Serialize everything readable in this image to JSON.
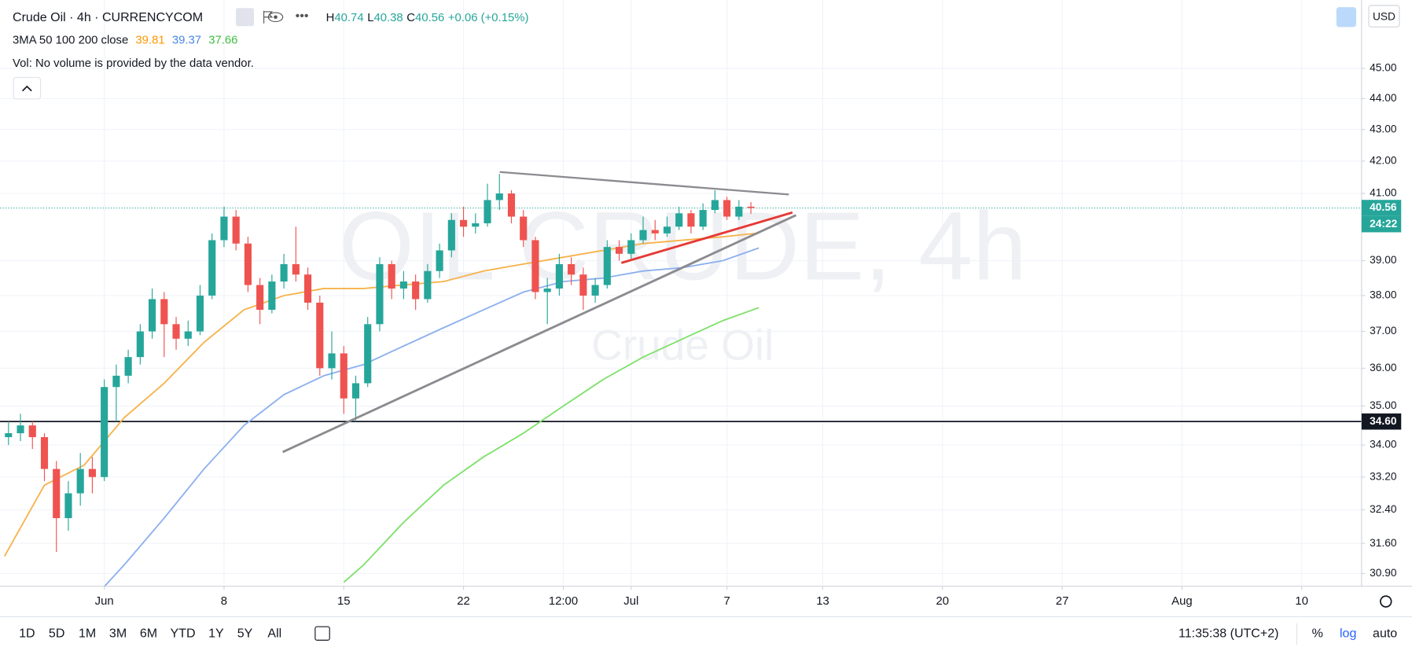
{
  "header": {
    "title": "Crude Oil · 4h · CURRENCYCOM",
    "ohlc": [
      "H",
      "40.74",
      "L",
      "40.38",
      "C",
      "40.56",
      "+0.06 (+0.15%)"
    ],
    "ma_label": "3MA 50 100 200 close",
    "volume_note": "Vol: No volume is provided by the data vendor.",
    "currency": "USD"
  },
  "watermark": {
    "symbol": "OIL CRUDE, 4h",
    "name": "Crude Oil"
  },
  "toolbar": {
    "ranges": [
      "1D",
      "5D",
      "1M",
      "3M",
      "6M",
      "YTD",
      "1Y",
      "5Y",
      "All"
    ],
    "clock": "11:35:38 (UTC+2)",
    "percent": "%",
    "log": "log",
    "auto": "auto"
  },
  "chart_data": {
    "type": "candlestick",
    "log_scale": true,
    "grid": true,
    "up_color": "#26a69a",
    "down_color": "#ef5350",
    "xlim": [
      0,
      340
    ],
    "ylim": [
      30.61,
      47.35
    ],
    "xticks": [
      {
        "value": 25,
        "label": "Jun"
      },
      {
        "value": 55,
        "label": "8"
      },
      {
        "value": 85,
        "label": "15"
      },
      {
        "value": 115,
        "label": "22"
      },
      {
        "value": 140,
        "label": "12:00"
      },
      {
        "value": 157,
        "label": "Jul"
      },
      {
        "value": 181,
        "label": "7"
      },
      {
        "value": 205,
        "label": "13"
      },
      {
        "value": 235,
        "label": "20"
      },
      {
        "value": 265,
        "label": "27"
      },
      {
        "value": 295,
        "label": "Aug"
      },
      {
        "value": 325,
        "label": "10"
      }
    ],
    "yticks": [
      {
        "value": 45,
        "label": "45.00"
      },
      {
        "value": 44,
        "label": "44.00"
      },
      {
        "value": 43,
        "label": "43.00"
      },
      {
        "value": 42,
        "label": "42.00"
      },
      {
        "value": 41,
        "label": "41.00"
      },
      {
        "value": 39,
        "label": "39.00"
      },
      {
        "value": 38,
        "label": "38.00"
      },
      {
        "value": 37,
        "label": "37.00"
      },
      {
        "value": 36,
        "label": "36.00"
      },
      {
        "value": 35,
        "label": "35.00"
      },
      {
        "value": 34,
        "label": "34.00"
      },
      {
        "value": 33.2,
        "label": "33.20"
      },
      {
        "value": 32.4,
        "label": "32.40"
      },
      {
        "value": 31.6,
        "label": "31.60"
      },
      {
        "value": 30.9,
        "label": "30.90"
      }
    ],
    "x": [
      1,
      4,
      7,
      10,
      13,
      16,
      19,
      22,
      25,
      28,
      31,
      34,
      37,
      40,
      43,
      46,
      49,
      52,
      55,
      58,
      61,
      64,
      67,
      70,
      73,
      76,
      79,
      82,
      85,
      88,
      91,
      94,
      97,
      100,
      103,
      106,
      109,
      112,
      115,
      118,
      121,
      124,
      127,
      130,
      133,
      136,
      139,
      142,
      145,
      148,
      151,
      154,
      157,
      160,
      163,
      166,
      169,
      172,
      175,
      178,
      181,
      184,
      187
    ],
    "ohlc": [
      [
        34.2,
        34.6,
        34.0,
        34.3
      ],
      [
        34.3,
        34.8,
        34.1,
        34.5
      ],
      [
        34.5,
        34.6,
        33.9,
        34.2
      ],
      [
        34.2,
        34.3,
        33.1,
        33.4
      ],
      [
        33.4,
        33.6,
        31.4,
        32.2
      ],
      [
        32.2,
        33.1,
        31.9,
        32.8
      ],
      [
        32.8,
        33.8,
        32.5,
        33.4
      ],
      [
        33.4,
        33.7,
        32.8,
        33.2
      ],
      [
        33.2,
        35.7,
        33.1,
        35.5
      ],
      [
        35.5,
        36.1,
        34.6,
        35.8
      ],
      [
        35.8,
        36.5,
        35.6,
        36.3
      ],
      [
        36.3,
        37.2,
        36.1,
        37.0
      ],
      [
        37.0,
        38.2,
        36.8,
        37.9
      ],
      [
        37.9,
        38.1,
        36.3,
        37.2
      ],
      [
        37.2,
        37.4,
        36.5,
        36.8
      ],
      [
        36.8,
        37.3,
        36.6,
        37.0
      ],
      [
        37.0,
        38.3,
        36.9,
        38.0
      ],
      [
        38.0,
        39.8,
        37.9,
        39.6
      ],
      [
        39.6,
        40.6,
        39.4,
        40.3
      ],
      [
        40.3,
        40.5,
        39.3,
        39.5
      ],
      [
        39.5,
        39.7,
        38.1,
        38.3
      ],
      [
        38.3,
        38.5,
        37.2,
        37.6
      ],
      [
        37.6,
        38.6,
        37.5,
        38.4
      ],
      [
        38.4,
        39.2,
        38.2,
        38.9
      ],
      [
        38.9,
        40.0,
        38.4,
        38.6
      ],
      [
        38.6,
        38.8,
        37.6,
        37.8
      ],
      [
        37.8,
        38.0,
        35.8,
        36.0
      ],
      [
        36.0,
        37.0,
        35.7,
        36.4
      ],
      [
        36.4,
        36.6,
        34.8,
        35.2
      ],
      [
        35.2,
        35.8,
        34.6,
        35.6
      ],
      [
        35.6,
        37.4,
        35.5,
        37.2
      ],
      [
        37.2,
        39.1,
        37.0,
        38.9
      ],
      [
        38.9,
        39.0,
        37.9,
        38.2
      ],
      [
        38.2,
        38.7,
        37.9,
        38.4
      ],
      [
        38.4,
        38.6,
        37.6,
        37.9
      ],
      [
        37.9,
        38.9,
        37.8,
        38.7
      ],
      [
        38.7,
        39.5,
        38.5,
        39.3
      ],
      [
        39.3,
        40.4,
        39.1,
        40.2
      ],
      [
        40.2,
        40.6,
        39.7,
        40.0
      ],
      [
        40.0,
        40.4,
        39.8,
        40.1
      ],
      [
        40.1,
        41.3,
        40.0,
        40.8
      ],
      [
        40.8,
        41.6,
        40.5,
        41.0
      ],
      [
        41.0,
        41.1,
        40.1,
        40.3
      ],
      [
        40.3,
        40.5,
        39.4,
        39.6
      ],
      [
        39.6,
        39.7,
        37.9,
        38.1
      ],
      [
        38.1,
        38.5,
        37.2,
        38.2
      ],
      [
        38.2,
        39.2,
        38.0,
        38.9
      ],
      [
        38.9,
        39.1,
        38.3,
        38.6
      ],
      [
        38.6,
        38.8,
        37.6,
        38.0
      ],
      [
        38.0,
        38.5,
        37.8,
        38.3
      ],
      [
        38.3,
        39.6,
        38.2,
        39.4
      ],
      [
        39.4,
        39.6,
        39.0,
        39.2
      ],
      [
        39.2,
        39.8,
        39.0,
        39.6
      ],
      [
        39.6,
        40.3,
        39.5,
        39.9
      ],
      [
        39.9,
        40.2,
        39.6,
        39.8
      ],
      [
        39.8,
        40.3,
        39.7,
        40.0
      ],
      [
        40.0,
        40.6,
        39.9,
        40.4
      ],
      [
        40.4,
        40.5,
        39.8,
        40.0
      ],
      [
        40.0,
        40.7,
        39.9,
        40.5
      ],
      [
        40.5,
        41.1,
        40.4,
        40.8
      ],
      [
        40.8,
        40.9,
        40.2,
        40.3
      ],
      [
        40.3,
        40.8,
        40.2,
        40.6
      ],
      [
        40.6,
        40.74,
        40.38,
        40.56
      ]
    ],
    "series": [
      {
        "color": "#f7b24a",
        "x": [
          0,
          10,
          20,
          30,
          40,
          50,
          60,
          70,
          80,
          90,
          100,
          110,
          120,
          130,
          140,
          150,
          160,
          170,
          180,
          189
        ],
        "values": [
          31.3,
          33.0,
          33.5,
          34.7,
          35.6,
          36.7,
          37.6,
          38.0,
          38.2,
          38.2,
          38.3,
          38.4,
          38.7,
          38.9,
          39.1,
          39.3,
          39.5,
          39.6,
          39.7,
          39.81
        ]
      },
      {
        "color": "#8cb0ee",
        "x": [
          25,
          30,
          40,
          50,
          60,
          70,
          80,
          90,
          100,
          110,
          120,
          130,
          140,
          150,
          160,
          170,
          180,
          189
        ],
        "values": [
          30.6,
          31.1,
          32.2,
          33.4,
          34.5,
          35.3,
          35.8,
          36.1,
          36.6,
          37.1,
          37.6,
          38.1,
          38.4,
          38.5,
          38.7,
          38.8,
          39.0,
          39.37
        ]
      },
      {
        "color": "#7ee06a",
        "x": [
          85,
          90,
          100,
          110,
          120,
          130,
          140,
          150,
          160,
          170,
          180,
          189
        ],
        "values": [
          30.7,
          31.1,
          32.1,
          33.0,
          33.7,
          34.3,
          35.0,
          35.7,
          36.3,
          36.8,
          37.3,
          37.66
        ]
      }
    ],
    "last_price": {
      "value": 40.56,
      "label": "40.56"
    },
    "countdown": "24:22",
    "horizontal_line": {
      "value": 34.6,
      "label": "34.60"
    }
  }
}
